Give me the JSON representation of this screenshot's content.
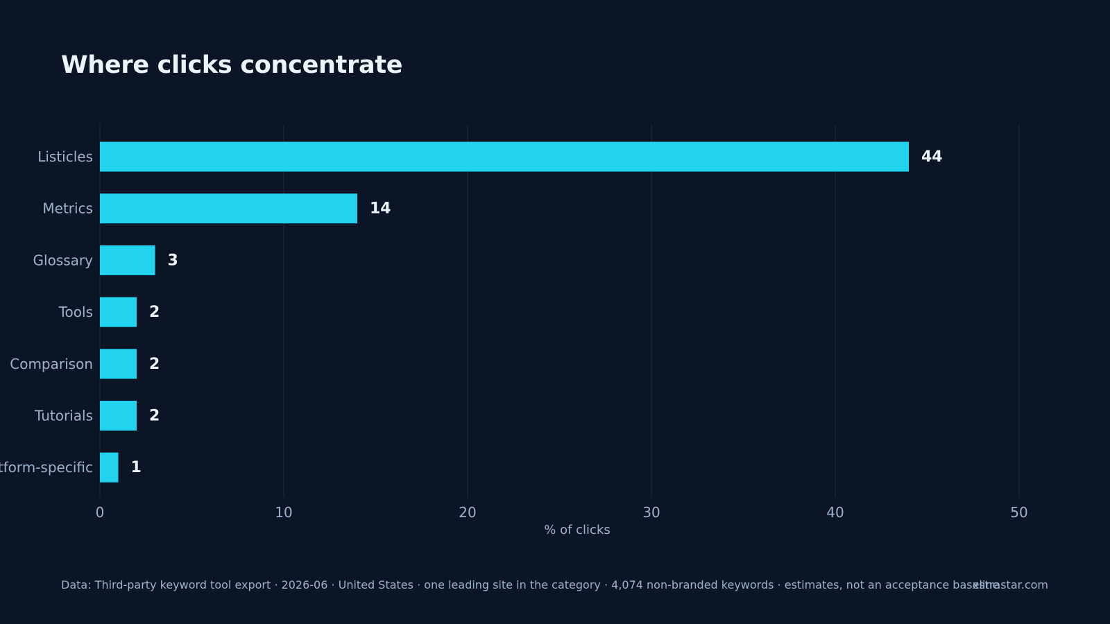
{
  "colors": {
    "background": "#0b1526",
    "bar": "#22d3ee",
    "grid": "#1a2a3d",
    "axis_text": "#9fb2cc",
    "value_text": "#eef3fb"
  },
  "chart_data": {
    "type": "bar",
    "orientation": "horizontal",
    "title": "Where clicks concentrate",
    "categories": [
      "Listicles",
      "Metrics",
      "Glossary",
      "Tools",
      "Comparison",
      "Tutorials",
      "Platform-specific"
    ],
    "values": [
      44,
      14,
      3,
      2,
      2,
      2,
      1
    ],
    "xlabel": "% of clicks",
    "ylabel": "",
    "xlim": [
      0,
      50
    ],
    "xticks": [
      0,
      10,
      20,
      30,
      40,
      50
    ],
    "grid": true,
    "data_labels": true,
    "legend": "none"
  },
  "footer": {
    "source": "Data: Third-party keyword tool export · 2026-06 · United States · one leading site in the category · 4,074 non-branded keywords · estimates, not an acceptance baseline",
    "brand": "xstrastar.com"
  }
}
